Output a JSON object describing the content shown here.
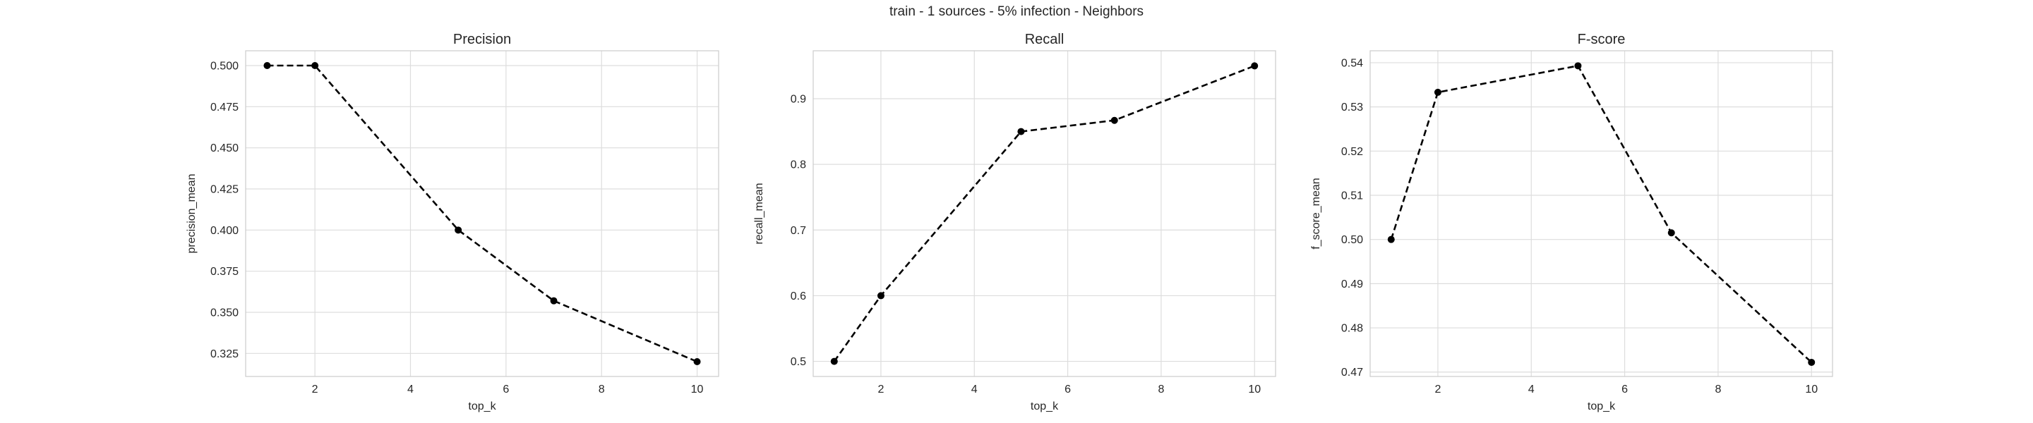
{
  "figure": {
    "suptitle": "train - 1 sources - 5% infection - Neighbors"
  },
  "chart_data": [
    {
      "type": "line",
      "title": "Precision",
      "xlabel": "top_k",
      "ylabel": "precision_mean",
      "x": [
        1,
        2,
        5,
        7,
        10
      ],
      "series": [
        {
          "values": [
            0.5,
            0.5,
            0.4,
            0.357,
            0.32
          ]
        }
      ],
      "xlim": [
        0.55,
        10.45
      ],
      "ylim": [
        0.311,
        0.509
      ],
      "xticks": [
        2,
        4,
        6,
        8,
        10
      ],
      "xtick_labels": [
        "2",
        "4",
        "6",
        "8",
        "10"
      ],
      "yticks": [
        0.325,
        0.35,
        0.375,
        0.4,
        0.425,
        0.45,
        0.475,
        0.5
      ],
      "ytick_labels": [
        "0.325",
        "0.350",
        "0.375",
        "0.400",
        "0.425",
        "0.450",
        "0.475",
        "0.500"
      ],
      "grid": true,
      "line_style": "dashed",
      "marker": "circle",
      "color": "#000000"
    },
    {
      "type": "line",
      "title": "Recall",
      "xlabel": "top_k",
      "ylabel": "recall_mean",
      "x": [
        1,
        2,
        5,
        7,
        10
      ],
      "series": [
        {
          "values": [
            0.5,
            0.6,
            0.85,
            0.867,
            0.95
          ]
        }
      ],
      "xlim": [
        0.55,
        10.45
      ],
      "ylim": [
        0.477,
        0.973
      ],
      "xticks": [
        2,
        4,
        6,
        8,
        10
      ],
      "xtick_labels": [
        "2",
        "4",
        "6",
        "8",
        "10"
      ],
      "yticks": [
        0.5,
        0.6,
        0.7,
        0.8,
        0.9
      ],
      "ytick_labels": [
        "0.5",
        "0.6",
        "0.7",
        "0.8",
        "0.9"
      ],
      "grid": true,
      "line_style": "dashed",
      "marker": "circle",
      "color": "#000000"
    },
    {
      "type": "line",
      "title": "F-score",
      "xlabel": "top_k",
      "ylabel": "f_score_mean",
      "x": [
        1,
        2,
        5,
        7,
        10
      ],
      "series": [
        {
          "values": [
            0.5,
            0.5333,
            0.5393,
            0.5015,
            0.4722
          ]
        }
      ],
      "xlim": [
        0.55,
        10.45
      ],
      "ylim": [
        0.469,
        0.5427
      ],
      "xticks": [
        2,
        4,
        6,
        8,
        10
      ],
      "xtick_labels": [
        "2",
        "4",
        "6",
        "8",
        "10"
      ],
      "yticks": [
        0.47,
        0.48,
        0.49,
        0.5,
        0.51,
        0.52,
        0.53,
        0.54
      ],
      "ytick_labels": [
        "0.47",
        "0.48",
        "0.49",
        "0.50",
        "0.51",
        "0.52",
        "0.53",
        "0.54"
      ],
      "grid": true,
      "line_style": "dashed",
      "marker": "circle",
      "color": "#000000"
    }
  ]
}
